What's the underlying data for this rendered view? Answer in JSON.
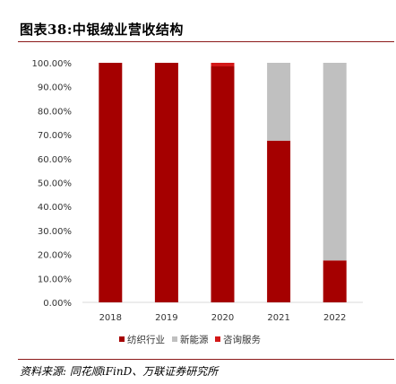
{
  "header": {
    "title": "图表38:中银绒业营收结构"
  },
  "footer": {
    "source": "资料来源: 同花顺iFinD、万联证券研究所"
  },
  "chart_data": {
    "type": "bar",
    "stacked": true,
    "categories": [
      "2018",
      "2019",
      "2020",
      "2021",
      "2022"
    ],
    "series": [
      {
        "name": "纺织行业",
        "color": "#a50000",
        "values": [
          100.0,
          100.0,
          98.5,
          67.5,
          17.5
        ]
      },
      {
        "name": "新能源",
        "color": "#c0c0c0",
        "values": [
          0.0,
          0.0,
          0.0,
          32.5,
          82.5
        ]
      },
      {
        "name": "咨询服务",
        "color": "#d31818",
        "values": [
          0.0,
          0.0,
          1.5,
          0.0,
          0.0
        ]
      }
    ],
    "y_ticks": [
      "0.00%",
      "10.00%",
      "20.00%",
      "30.00%",
      "40.00%",
      "50.00%",
      "60.00%",
      "70.00%",
      "80.00%",
      "90.00%",
      "100.00%"
    ],
    "ylim": [
      0,
      100
    ],
    "grid": false,
    "legend_position": "bottom",
    "title": "",
    "xlabel": "",
    "ylabel": ""
  }
}
